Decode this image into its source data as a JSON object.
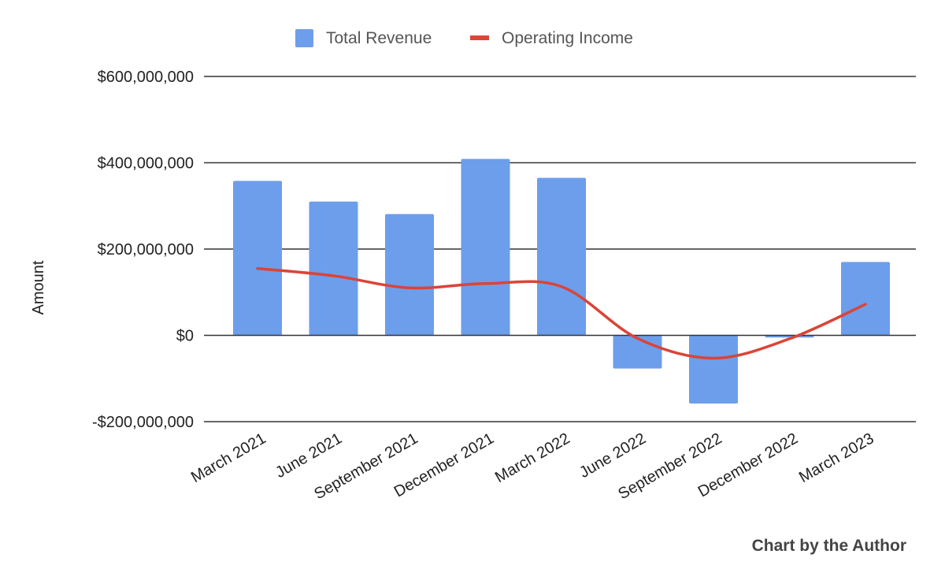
{
  "chart_data": {
    "type": "bar",
    "categories": [
      "March 2021",
      "June 2021",
      "September 2021",
      "December 2021",
      "March 2022",
      "June 2022",
      "September 2022",
      "December 2022",
      "March 2023"
    ],
    "series": [
      {
        "name": "Total Revenue",
        "type": "bar",
        "color": "#6d9eeb",
        "values": [
          358000000,
          310000000,
          281000000,
          409000000,
          365000000,
          -77000000,
          -158000000,
          -5000000,
          170000000
        ]
      },
      {
        "name": "Operating Income",
        "type": "line",
        "smooth": true,
        "color": "#db4437",
        "values": [
          155000000,
          138000000,
          110000000,
          120000000,
          113000000,
          -7000000,
          -53000000,
          -8000000,
          72000000
        ]
      }
    ],
    "ylabel": "Amount",
    "xlabel": "",
    "ylim": [
      -200000000,
      600000000
    ],
    "yticks": [
      600000000,
      400000000,
      200000000,
      0,
      -200000000
    ],
    "ytick_labels": [
      "$600,000,000",
      "$400,000,000",
      "$200,000,000",
      "$0",
      "-$200,000,000"
    ],
    "grid": true,
    "legend": "top",
    "credit": "Chart by the Author"
  }
}
